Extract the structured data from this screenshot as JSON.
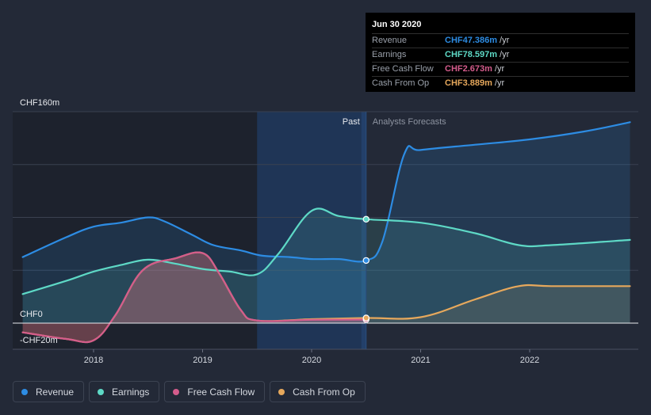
{
  "chart_data": {
    "type": "line",
    "currency_prefix": "CHF",
    "y_axis_labels": [
      "CHF160m",
      "CHF0",
      "-CHF20m"
    ],
    "ylim": [
      -20,
      160
    ],
    "x_ticks": [
      "2018",
      "2019",
      "2020",
      "2021",
      "2022"
    ],
    "x_tick_values": [
      2018.0,
      2019.0,
      2020.0,
      2021.0,
      2022.0
    ],
    "xlim": [
      2017.13,
      2022.92
    ],
    "divider_x": 2020.5,
    "past_label": "Past",
    "forecast_label": "Analysts Forecasts",
    "highlight_range": [
      2019.5,
      2020.5
    ],
    "series": [
      {
        "name": "Revenue",
        "color": "#2d8ce3",
        "fill_opacity": 0.16,
        "points": [
          [
            2017.35,
            50
          ],
          [
            2017.75,
            65
          ],
          [
            2018.0,
            73
          ],
          [
            2018.25,
            76
          ],
          [
            2018.5,
            80
          ],
          [
            2018.65,
            77
          ],
          [
            2018.9,
            67
          ],
          [
            2019.1,
            59
          ],
          [
            2019.35,
            55
          ],
          [
            2019.55,
            51
          ],
          [
            2019.8,
            50
          ],
          [
            2020.0,
            48.5
          ],
          [
            2020.25,
            48.5
          ],
          [
            2020.5,
            47.4
          ],
          [
            2020.65,
            62
          ],
          [
            2020.85,
            128
          ],
          [
            2021.0,
            131
          ],
          [
            2021.5,
            135
          ],
          [
            2022.0,
            139
          ],
          [
            2022.5,
            145
          ],
          [
            2022.92,
            152
          ]
        ],
        "marker": [
          2020.5,
          47.4
        ]
      },
      {
        "name": "Earnings",
        "color": "#5ed9c6",
        "fill_opacity": 0.13,
        "points": [
          [
            2017.35,
            22
          ],
          [
            2017.75,
            32
          ],
          [
            2018.0,
            39
          ],
          [
            2018.25,
            44
          ],
          [
            2018.5,
            48
          ],
          [
            2018.75,
            45
          ],
          [
            2019.0,
            41
          ],
          [
            2019.25,
            39
          ],
          [
            2019.5,
            37
          ],
          [
            2019.7,
            53
          ],
          [
            2020.0,
            85
          ],
          [
            2020.25,
            81
          ],
          [
            2020.5,
            78.6
          ],
          [
            2021.0,
            76
          ],
          [
            2021.5,
            68
          ],
          [
            2021.9,
            59
          ],
          [
            2022.2,
            59
          ],
          [
            2022.92,
            63
          ]
        ],
        "marker": [
          2020.5,
          78.6
        ]
      },
      {
        "name": "Free Cash Flow",
        "color": "#d45c8c",
        "fill_opacity": 0.3,
        "points": [
          [
            2017.35,
            -7
          ],
          [
            2017.75,
            -12
          ],
          [
            2018.0,
            -13
          ],
          [
            2018.2,
            6
          ],
          [
            2018.45,
            40
          ],
          [
            2018.75,
            49
          ],
          [
            2019.0,
            53
          ],
          [
            2019.15,
            38
          ],
          [
            2019.35,
            10
          ],
          [
            2019.5,
            2
          ],
          [
            2020.0,
            2.5
          ],
          [
            2020.5,
            2.7
          ]
        ],
        "marker": [
          2020.5,
          2.7
        ]
      },
      {
        "name": "Cash From Op",
        "color": "#e6a85c",
        "fill_opacity": 0.12,
        "points": [
          [
            2017.35,
            -7
          ],
          [
            2017.75,
            -12
          ],
          [
            2018.0,
            -13
          ],
          [
            2018.2,
            6
          ],
          [
            2018.45,
            40
          ],
          [
            2018.75,
            49
          ],
          [
            2019.0,
            53
          ],
          [
            2019.15,
            38
          ],
          [
            2019.35,
            10
          ],
          [
            2019.5,
            2
          ],
          [
            2020.0,
            3
          ],
          [
            2020.5,
            3.9
          ],
          [
            2021.0,
            4.5
          ],
          [
            2021.5,
            18
          ],
          [
            2021.9,
            28
          ],
          [
            2022.2,
            28
          ],
          [
            2022.92,
            28
          ]
        ],
        "marker": [
          2020.5,
          3.9
        ]
      }
    ],
    "tooltip": {
      "date": "Jun 30 2020",
      "rows": [
        {
          "label": "Revenue",
          "value": "CHF47.386m",
          "unit": "/yr",
          "color": "#2d8ce3"
        },
        {
          "label": "Earnings",
          "value": "CHF78.597m",
          "unit": "/yr",
          "color": "#5ed9c6"
        },
        {
          "label": "Free Cash Flow",
          "value": "CHF2.673m",
          "unit": "/yr",
          "color": "#d45c8c"
        },
        {
          "label": "Cash From Op",
          "value": "CHF3.889m",
          "unit": "/yr",
          "color": "#e6a85c"
        }
      ]
    }
  },
  "legend": [
    {
      "label": "Revenue",
      "color": "#2d8ce3"
    },
    {
      "label": "Earnings",
      "color": "#5ed9c6"
    },
    {
      "label": "Free Cash Flow",
      "color": "#d45c8c"
    },
    {
      "label": "Cash From Op",
      "color": "#e6a85c"
    }
  ]
}
